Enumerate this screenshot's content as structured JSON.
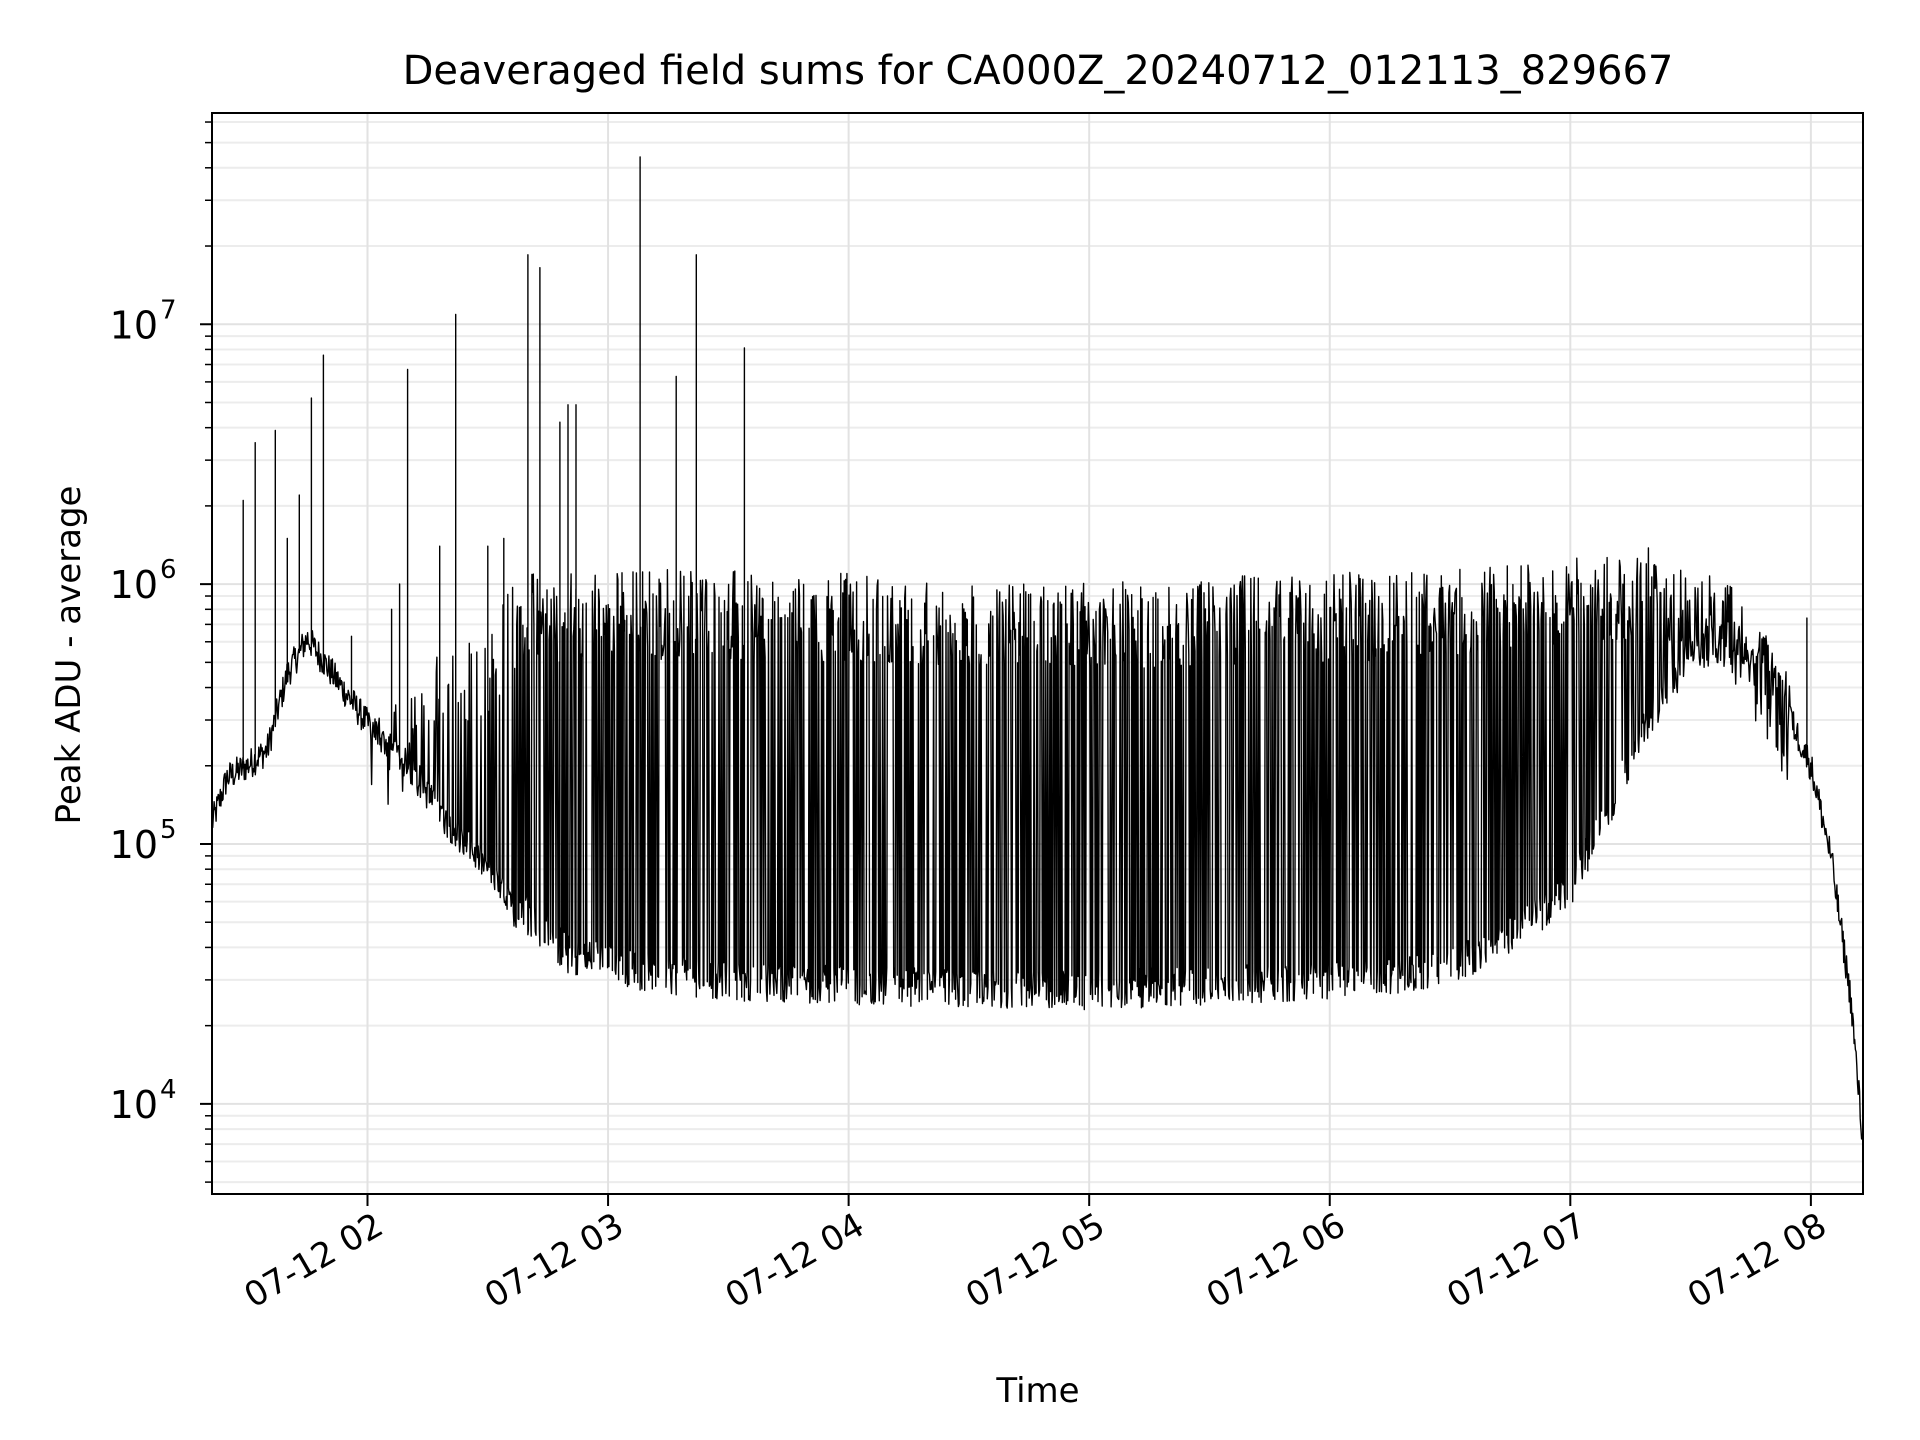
{
  "chart_data": {
    "type": "line",
    "title": "Deaveraged field sums for CA000Z_20240712_012113_829667",
    "xlabel": "Time",
    "ylabel": "Peak ADU - average",
    "x_axis": {
      "type": "time",
      "range": [
        "2024-07-12 01:21:13",
        "2024-07-12 08:13:00"
      ],
      "ticks": [
        {
          "value": "2024-07-12 02:00",
          "label": "07-12 02"
        },
        {
          "value": "2024-07-12 03:00",
          "label": "07-12 03"
        },
        {
          "value": "2024-07-12 04:00",
          "label": "07-12 04"
        },
        {
          "value": "2024-07-12 05:00",
          "label": "07-12 05"
        },
        {
          "value": "2024-07-12 06:00",
          "label": "07-12 06"
        },
        {
          "value": "2024-07-12 07:00",
          "label": "07-12 07"
        },
        {
          "value": "2024-07-12 08:00",
          "label": "07-12 08"
        }
      ]
    },
    "y_axis": {
      "scale": "log",
      "range": [
        4500,
        65000000
      ],
      "ticks": [
        {
          "value": 10000,
          "base": "10",
          "exp": "4"
        },
        {
          "value": 100000,
          "base": "10",
          "exp": "5"
        },
        {
          "value": 1000000,
          "base": "10",
          "exp": "6"
        },
        {
          "value": 10000000,
          "base": "10",
          "exp": "7"
        }
      ]
    },
    "grid": true,
    "series": [
      {
        "color": "#000000",
        "baseline": [
          {
            "x": "2024-07-12 01:21:13",
            "y": 120000
          },
          {
            "x": "2024-07-12 01:25",
            "y": 180000
          },
          {
            "x": "2024-07-12 01:30",
            "y": 200000
          },
          {
            "x": "2024-07-12 01:35",
            "y": 230000
          },
          {
            "x": "2024-07-12 01:40",
            "y": 450000
          },
          {
            "x": "2024-07-12 01:45",
            "y": 620000
          },
          {
            "x": "2024-07-12 01:50",
            "y": 480000
          },
          {
            "x": "2024-07-12 02:00",
            "y": 290000
          },
          {
            "x": "2024-07-12 02:10",
            "y": 200000
          },
          {
            "x": "2024-07-12 02:20",
            "y": 120000
          },
          {
            "x": "2024-07-12 02:30",
            "y": 80000
          },
          {
            "x": "2024-07-12 02:40",
            "y": 45000
          },
          {
            "x": "2024-07-12 02:50",
            "y": 32000
          },
          {
            "x": "2024-07-12 03:10",
            "y": 27000
          },
          {
            "x": "2024-07-12 03:30",
            "y": 25000
          },
          {
            "x": "2024-07-12 04:00",
            "y": 24000
          },
          {
            "x": "2024-07-12 05:00",
            "y": 23000
          },
          {
            "x": "2024-07-12 06:00",
            "y": 25000
          },
          {
            "x": "2024-07-12 06:30",
            "y": 28000
          },
          {
            "x": "2024-07-12 06:45",
            "y": 38000
          },
          {
            "x": "2024-07-12 07:00",
            "y": 55000
          },
          {
            "x": "2024-07-12 07:10",
            "y": 120000
          },
          {
            "x": "2024-07-12 07:20",
            "y": 260000
          },
          {
            "x": "2024-07-12 07:30",
            "y": 450000
          },
          {
            "x": "2024-07-12 07:40",
            "y": 520000
          },
          {
            "x": "2024-07-12 07:50",
            "y": 450000
          },
          {
            "x": "2024-07-12 08:00",
            "y": 200000
          },
          {
            "x": "2024-07-12 08:05",
            "y": 90000
          },
          {
            "x": "2024-07-12 08:10",
            "y": 25000
          },
          {
            "x": "2024-07-12 08:13",
            "y": 7000
          }
        ],
        "envelope_top": [
          {
            "x": "2024-07-12 02:00",
            "y": 300000
          },
          {
            "x": "2024-07-12 02:40",
            "y": 1100000
          },
          {
            "x": "2024-07-12 03:00",
            "y": 1150000
          },
          {
            "x": "2024-07-12 04:00",
            "y": 1100000
          },
          {
            "x": "2024-07-12 05:00",
            "y": 1050000
          },
          {
            "x": "2024-07-12 06:00",
            "y": 1100000
          },
          {
            "x": "2024-07-12 07:00",
            "y": 1250000
          },
          {
            "x": "2024-07-12 07:20",
            "y": 1400000
          },
          {
            "x": "2024-07-12 07:40",
            "y": 1000000
          },
          {
            "x": "2024-07-12 08:00",
            "y": 250000
          }
        ],
        "spikes": [
          {
            "x": "2024-07-12 01:29",
            "y": 2100000
          },
          {
            "x": "2024-07-12 01:32",
            "y": 3500000
          },
          {
            "x": "2024-07-12 01:37",
            "y": 3900000
          },
          {
            "x": "2024-07-12 01:40",
            "y": 1500000
          },
          {
            "x": "2024-07-12 01:43",
            "y": 2200000
          },
          {
            "x": "2024-07-12 01:46",
            "y": 5200000
          },
          {
            "x": "2024-07-12 01:49",
            "y": 7600000
          },
          {
            "x": "2024-07-12 01:56",
            "y": 630000
          },
          {
            "x": "2024-07-12 02:06",
            "y": 800000
          },
          {
            "x": "2024-07-12 02:08",
            "y": 1000000
          },
          {
            "x": "2024-07-12 02:10",
            "y": 6700000
          },
          {
            "x": "2024-07-12 02:18",
            "y": 1400000
          },
          {
            "x": "2024-07-12 02:22",
            "y": 10900000
          },
          {
            "x": "2024-07-12 02:30",
            "y": 1400000
          },
          {
            "x": "2024-07-12 02:34",
            "y": 1500000
          },
          {
            "x": "2024-07-12 02:40",
            "y": 18500000
          },
          {
            "x": "2024-07-12 02:43",
            "y": 16500000
          },
          {
            "x": "2024-07-12 02:48",
            "y": 4200000
          },
          {
            "x": "2024-07-12 02:50",
            "y": 4900000
          },
          {
            "x": "2024-07-12 02:52",
            "y": 4900000
          },
          {
            "x": "2024-07-12 03:08",
            "y": 44000000
          },
          {
            "x": "2024-07-12 03:17",
            "y": 6300000
          },
          {
            "x": "2024-07-12 03:22",
            "y": 18500000
          },
          {
            "x": "2024-07-12 03:34",
            "y": 8100000
          },
          {
            "x": "2024-07-12 07:59",
            "y": 740000
          }
        ]
      }
    ]
  }
}
